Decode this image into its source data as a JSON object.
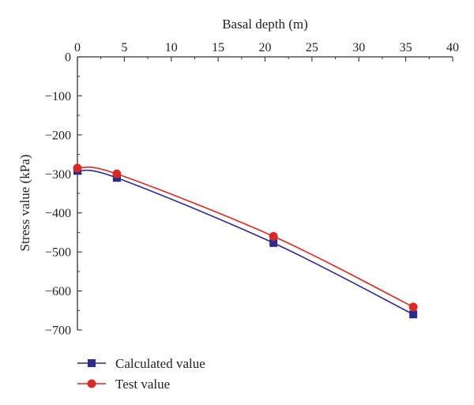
{
  "chart_data": {
    "type": "line",
    "xlabel": "Basal depth (m)",
    "ylabel": "Stress value (kPa)",
    "xlim": [
      0,
      40
    ],
    "ylim": [
      -700,
      0
    ],
    "x_axis_position": "top",
    "y_axis_inverted": false,
    "x_ticks": [
      0,
      5,
      10,
      15,
      20,
      25,
      30,
      35,
      40
    ],
    "y_ticks": [
      0,
      -100,
      -200,
      -300,
      -400,
      -500,
      -600,
      -700
    ],
    "x_tick_labels": [
      "0",
      "5",
      "10",
      "15",
      "20",
      "25",
      "30",
      "35",
      "40"
    ],
    "y_tick_labels": [
      "0",
      "−100",
      "−200",
      "−300",
      "−400",
      "−500",
      "−600",
      "−700"
    ],
    "grid": false,
    "legend_position": "bottom-left",
    "series": [
      {
        "name": "Calculated value",
        "marker": "square",
        "color": "#2e2a8c",
        "x": [
          0,
          4.2,
          20.9,
          35.8
        ],
        "y": [
          -292,
          -310,
          -477,
          -660
        ]
      },
      {
        "name": "Test value",
        "marker": "circle",
        "color": "#d62a26",
        "x": [
          0,
          4.2,
          20.9,
          35.8
        ],
        "y": [
          -285,
          -300,
          -460,
          -641
        ]
      }
    ]
  }
}
